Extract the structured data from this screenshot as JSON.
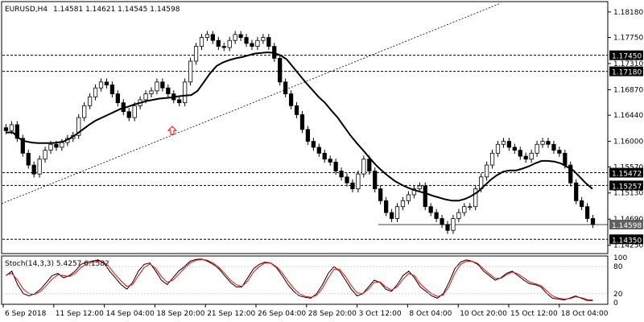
{
  "chart_data": {
    "type": "candlestick",
    "symbol": "EURUSD,H4",
    "ohlc_label": "1.14581 1.14621 1.14545 1.14598",
    "price_ylim": [
      1.1415,
      1.183
    ],
    "price_ticks": [
      "1.18180",
      "1.17750",
      "1.17310",
      "1.16870",
      "1.16440",
      "1.16000",
      "1.15570",
      "1.15130",
      "1.14690",
      "1.14250"
    ],
    "levels": [
      {
        "value": 1.1745,
        "label": "1.17450"
      },
      {
        "value": 1.1718,
        "label": "1.17180"
      },
      {
        "value": 1.15472,
        "label": "1.15472"
      },
      {
        "value": 1.15257,
        "label": "1.15257"
      },
      {
        "value": 1.1435,
        "label": "1.14350"
      }
    ],
    "current_price": {
      "value": 1.14598,
      "label": "1.14598"
    },
    "close_series": [
      1.1618,
      1.1628,
      1.1605,
      1.158,
      1.156,
      1.1545,
      1.157,
      1.1585,
      1.1595,
      1.159,
      1.1598,
      1.1605,
      1.161,
      1.164,
      1.166,
      1.1675,
      1.169,
      1.17,
      1.1695,
      1.168,
      1.1665,
      1.165,
      1.164,
      1.166,
      1.167,
      1.168,
      1.1685,
      1.17,
      1.169,
      1.168,
      1.167,
      1.1665,
      1.17,
      1.1735,
      1.176,
      1.1775,
      1.178,
      1.177,
      1.176,
      1.1758,
      1.177,
      1.178,
      1.1775,
      1.1765,
      1.176,
      1.177,
      1.1775,
      1.176,
      1.174,
      1.17,
      1.168,
      1.166,
      1.1645,
      1.162,
      1.16,
      1.159,
      1.158,
      1.157,
      1.1565,
      1.155,
      1.154,
      1.153,
      1.152,
      1.1545,
      1.157,
      1.155,
      1.152,
      1.15,
      1.148,
      1.147,
      1.149,
      1.15,
      1.151,
      1.152,
      1.1525,
      1.149,
      1.148,
      1.147,
      1.146,
      1.145,
      1.147,
      1.148,
      1.149,
      1.149,
      1.152,
      1.154,
      1.156,
      1.158,
      1.1595,
      1.16,
      1.159,
      1.1585,
      1.1575,
      1.157,
      1.158,
      1.1595,
      1.16,
      1.1595,
      1.1585,
      1.158,
      1.156,
      1.153,
      1.15,
      1.149,
      1.147,
      1.146
    ],
    "ma_series": [
      1.1615,
      1.1615,
      1.1605,
      1.16,
      1.1598,
      1.1597,
      1.1597,
      1.1597,
      1.1598,
      1.16,
      1.1605,
      1.1612,
      1.162,
      1.1628,
      1.1635,
      1.164,
      1.1645,
      1.165,
      1.1655,
      1.1658,
      1.1662,
      1.1665,
      1.1668,
      1.167,
      1.1672,
      1.1673,
      1.1674,
      1.1676,
      1.1677,
      1.1678,
      1.1685,
      1.17,
      1.1715,
      1.1727,
      1.1733,
      1.1737,
      1.174,
      1.1742,
      1.1745,
      1.1748,
      1.1749,
      1.175,
      1.1749,
      1.1745,
      1.1738,
      1.1725,
      1.1712,
      1.1699,
      1.1687,
      1.1675,
      1.1665,
      1.1652,
      1.164,
      1.1625,
      1.161,
      1.1597,
      1.1585,
      1.1572,
      1.156,
      1.155,
      1.1541,
      1.1533,
      1.1527,
      1.1522,
      1.1518,
      1.1515,
      1.1512,
      1.1508,
      1.1505,
      1.1502,
      1.15,
      1.15,
      1.1503,
      1.1508,
      1.1515,
      1.1525,
      1.1535,
      1.1543,
      1.1549,
      1.1551,
      1.1551,
      1.1554,
      1.1558,
      1.1563,
      1.1567,
      1.1567,
      1.1566,
      1.1563,
      1.1557,
      1.1551,
      1.154,
      1.1529,
      1.152
    ],
    "x_tick_labels": [
      "6 Sep 2018",
      "11 Sep 12:00",
      "14 Sep 04:00",
      "18 Sep 20:00",
      "21 Sep 12:00",
      "26 Sep 04:00",
      "28 Sep 20:00",
      "3 Oct 12:00",
      "8 Oct 04:00",
      "10 Oct 20:00",
      "15 Oct 12:00",
      "18 Oct 04:00"
    ],
    "stochastic": {
      "label": "Stoch(14,3,3) 5.4257 6.1582",
      "ylim": [
        0,
        100
      ],
      "ticks": [
        "100",
        "80",
        "20",
        "0"
      ],
      "main": [
        60,
        70,
        40,
        20,
        15,
        20,
        30,
        45,
        60,
        65,
        55,
        60,
        70,
        85,
        90,
        92,
        95,
        88,
        70,
        55,
        40,
        30,
        45,
        70,
        85,
        88,
        70,
        50,
        40,
        55,
        70,
        80,
        92,
        96,
        97,
        92,
        85,
        75,
        60,
        45,
        35,
        35,
        55,
        75,
        85,
        90,
        88,
        78,
        60,
        40,
        25,
        15,
        12,
        10,
        20,
        40,
        65,
        80,
        70,
        50,
        30,
        15,
        20,
        35,
        50,
        45,
        30,
        25,
        40,
        60,
        70,
        55,
        35,
        25,
        15,
        10,
        20,
        45,
        75,
        90,
        95,
        92,
        85,
        70,
        60,
        50,
        55,
        65,
        70,
        60,
        50,
        42,
        40,
        35,
        20,
        10,
        8,
        6,
        10,
        15,
        10,
        5,
        5
      ],
      "signal": [
        62,
        65,
        50,
        30,
        20,
        18,
        25,
        38,
        52,
        62,
        60,
        58,
        65,
        78,
        86,
        90,
        92,
        90,
        78,
        62,
        48,
        36,
        40,
        60,
        78,
        86,
        76,
        58,
        45,
        50,
        63,
        76,
        88,
        94,
        96,
        94,
        88,
        78,
        65,
        50,
        40,
        36,
        48,
        68,
        80,
        88,
        88,
        80,
        66,
        48,
        32,
        20,
        14,
        12,
        16,
        32,
        55,
        74,
        74,
        58,
        38,
        22,
        20,
        30,
        45,
        46,
        35,
        28,
        35,
        52,
        65,
        60,
        42,
        30,
        20,
        14,
        17,
        36,
        65,
        85,
        92,
        92,
        87,
        75,
        64,
        54,
        54,
        62,
        68,
        64,
        55,
        46,
        42,
        38,
        26,
        15,
        10,
        8,
        9,
        13,
        11,
        7,
        6
      ]
    }
  },
  "colors": {
    "background": "#ffffff",
    "grid_text": "#000000",
    "candle": "#000000",
    "ma": "#000000",
    "stoch_main": "#000000",
    "stoch_signal": "#ff0000",
    "trendline": "#000000",
    "arrow": "#ff0000",
    "level_label_bg": "#000000",
    "level_label_text": "#ffffff"
  },
  "arrow_icon": "up-arrow-icon"
}
